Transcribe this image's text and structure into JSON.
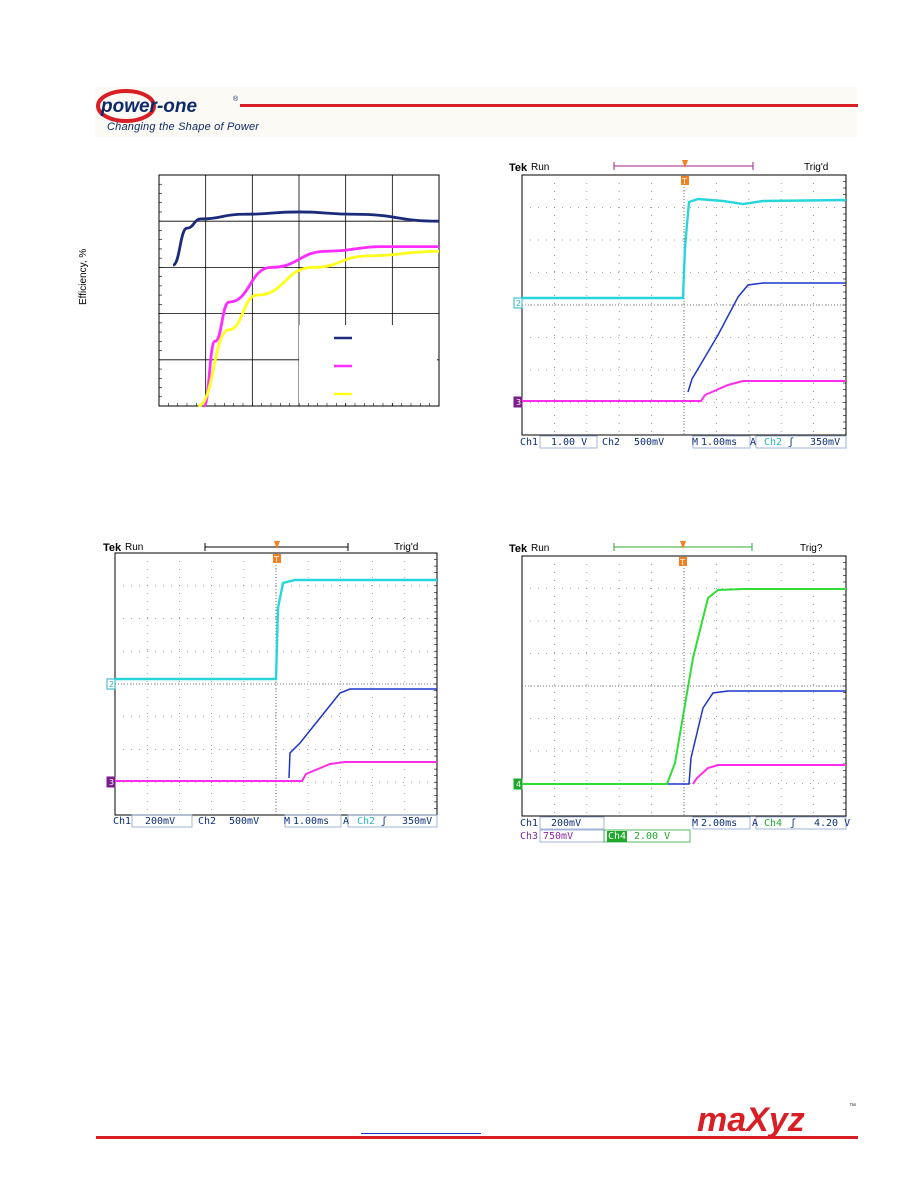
{
  "header": {
    "logo_text": "power-one",
    "logo_mark": "®",
    "tagline": "Changing the Shape of Power"
  },
  "efficiency_chart": {
    "ylabel": "Efficiency, %",
    "colors": {
      "s1": "#1b2a7a",
      "s2": "#ff2cff",
      "s3": "#ffff1a"
    },
    "chart_data": {
      "type": "line",
      "title": "",
      "xlabel": "",
      "ylabel": "Efficiency, %",
      "x_gridlines": 6,
      "y_gridlines": 5,
      "grid": true,
      "legend": "bottom-right",
      "series": [
        {
          "color": "#1b2a7a",
          "values": [
            [
              0.05,
              0.61
            ],
            [
              0.1,
              0.77
            ],
            [
              0.15,
              0.81
            ],
            [
              0.3,
              0.83
            ],
            [
              0.5,
              0.84
            ],
            [
              0.7,
              0.83
            ],
            [
              1.0,
              0.8
            ]
          ]
        },
        {
          "color": "#ff2cff",
          "values": [
            [
              0.16,
              0.0
            ],
            [
              0.2,
              0.28
            ],
            [
              0.25,
              0.45
            ],
            [
              0.4,
              0.6
            ],
            [
              0.6,
              0.67
            ],
            [
              0.8,
              0.69
            ],
            [
              1.0,
              0.69
            ]
          ]
        },
        {
          "color": "#ffff1a",
          "values": [
            [
              0.14,
              0.0
            ],
            [
              0.25,
              0.33
            ],
            [
              0.35,
              0.48
            ],
            [
              0.55,
              0.6
            ],
            [
              0.75,
              0.65
            ],
            [
              1.0,
              0.67
            ]
          ]
        }
      ]
    }
  },
  "scope1": {
    "tek": "Tek",
    "run": "Run",
    "trig": "Trig'd",
    "marker": "T",
    "ch_labels": [
      "2",
      "3"
    ],
    "status": {
      "ch1": "Ch1",
      "ch1_val": "1.00 V",
      "ch2": "Ch2",
      "ch2_val": "500mV",
      "m": "M",
      "time": "1.00ms",
      "a": "A",
      "src": "Ch2",
      "edge": "ʃ",
      "level": "350mV"
    },
    "colors": {
      "cyan": "#27d6dc",
      "blue": "#1e35c8",
      "magenta": "#ff2ce8"
    }
  },
  "scope2": {
    "tek": "Tek",
    "run": "Run",
    "trig": "Trig'd",
    "marker": "T",
    "ch_labels": [
      "2",
      "3"
    ],
    "status": {
      "ch1": "Ch1",
      "ch1_val": "200mV",
      "ch2": "Ch2",
      "ch2_val": "500mV",
      "m": "M",
      "time": "1.00ms",
      "a": "A",
      "src": "Ch2",
      "edge": "ʃ",
      "level": "350mV"
    }
  },
  "scope3": {
    "tek": "Tek",
    "run": "Run",
    "trig": "Trig?",
    "marker": "T",
    "ch_labels": [
      "4"
    ],
    "status": {
      "ch1": "Ch1",
      "ch1_val": "200mV",
      "ch3": "Ch3",
      "ch3_val": "750mV",
      "ch4": "Ch4",
      "ch4_val": "2.00 V",
      "m": "M",
      "time": "2.00ms",
      "a": "A",
      "src": "Ch4",
      "edge": "ʃ",
      "level": "4.20 V"
    },
    "colors": {
      "green": "#2fdc38"
    }
  },
  "footer": {
    "brand": "maXyz",
    "trademark": "™"
  }
}
